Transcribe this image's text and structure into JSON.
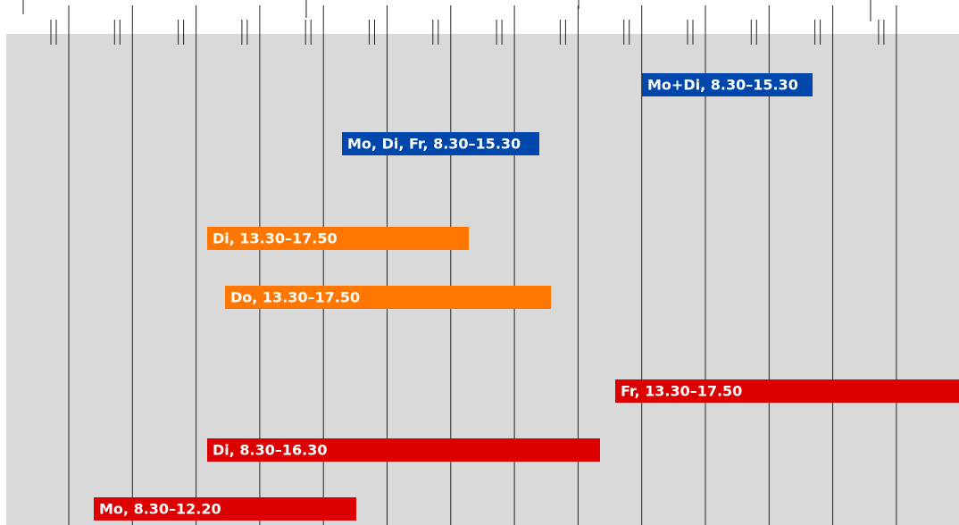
{
  "bars": [
    {
      "label": "Mo+Di, 8.30–15.30",
      "color": "#0047ab"
    },
    {
      "label": "Mo, Di, Fr, 8.30–15.30",
      "color": "#0047ab"
    },
    {
      "label": "Di, 13.30–17.50",
      "color": "#ff7700"
    },
    {
      "label": "Do, 13.30–17.50",
      "color": "#ff7700"
    },
    {
      "label": "Fr, 13.30–17.50",
      "color": "#dd0000"
    },
    {
      "label": "Di, 8.30–16.30",
      "color": "#dd0000"
    },
    {
      "label": "Mo, 8.30–12.20",
      "color": "#dd0000"
    }
  ]
}
